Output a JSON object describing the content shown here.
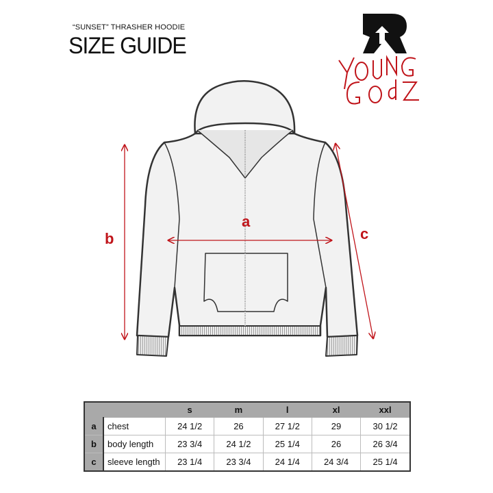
{
  "header": {
    "subtitle": "“SUNSET” THRASHER HOODIE",
    "title": "SIZE GUIDE"
  },
  "logo": {
    "text": "YOUNG GODZ",
    "accent": "#c0141a"
  },
  "diagram": {
    "labels": {
      "a": "a",
      "b": "b",
      "c": "c"
    },
    "arrow_color": "#c0141a"
  },
  "table": {
    "sizes": [
      "s",
      "m",
      "l",
      "xl",
      "xxl"
    ],
    "rows": [
      {
        "key": "a",
        "name": "chest",
        "values": [
          "24 1/2",
          "26",
          "27 1/2",
          "29",
          "30 1/2"
        ]
      },
      {
        "key": "b",
        "name": "body length",
        "values": [
          "23 3/4",
          "24 1/2",
          "25 1/4",
          "26",
          "26 3/4"
        ]
      },
      {
        "key": "c",
        "name": "sleeve length",
        "values": [
          "23 1/4",
          "23 3/4",
          "24 1/4",
          "24 3/4",
          "25 1/4"
        ]
      }
    ]
  }
}
